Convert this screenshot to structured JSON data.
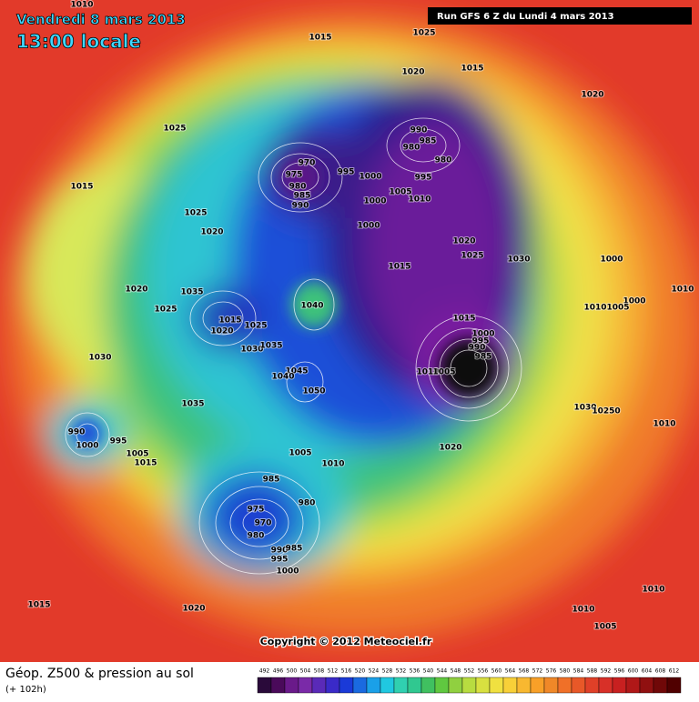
{
  "header": {
    "date": "Vendredi 8 mars 2013",
    "time": "13:00 locale",
    "run": "Run GFS 6 Z du Lundi 4 mars 2013"
  },
  "copyright": "Copyright © 2012 Meteociel.fr",
  "footer": {
    "title": "Géop. Z500 & pression au sol",
    "lead": "(+ 102h)"
  },
  "legend": {
    "ticks": [
      492,
      496,
      500,
      504,
      508,
      512,
      516,
      520,
      524,
      528,
      532,
      536,
      540,
      544,
      548,
      552,
      556,
      560,
      564,
      568,
      572,
      576,
      580,
      584,
      588,
      592,
      596,
      600,
      604,
      608,
      612
    ]
  },
  "pressure_labels": [
    1010,
    1015,
    1025,
    1020,
    1015,
    1020,
    1025,
    970,
    975,
    980,
    985,
    990,
    995,
    990,
    985,
    980,
    980,
    1000,
    995,
    1005,
    1010,
    1000,
    1000,
    1015,
    1025,
    1020,
    1020,
    1025,
    1030,
    1015,
    1000,
    1010,
    1000,
    1010,
    1005,
    1020,
    1025,
    1035,
    1040,
    1015,
    1020,
    1025,
    1030,
    1035,
    1015,
    1000,
    995,
    990,
    985,
    1010,
    1005,
    1045,
    1040,
    1050,
    1030,
    1035,
    1030,
    10250,
    1010,
    990,
    995,
    1000,
    1005,
    1015,
    1020,
    1005,
    1010,
    985,
    980,
    975,
    970,
    980,
    990,
    985,
    995,
    1000,
    1015,
    1020,
    1010,
    1005,
    1010
  ]
}
